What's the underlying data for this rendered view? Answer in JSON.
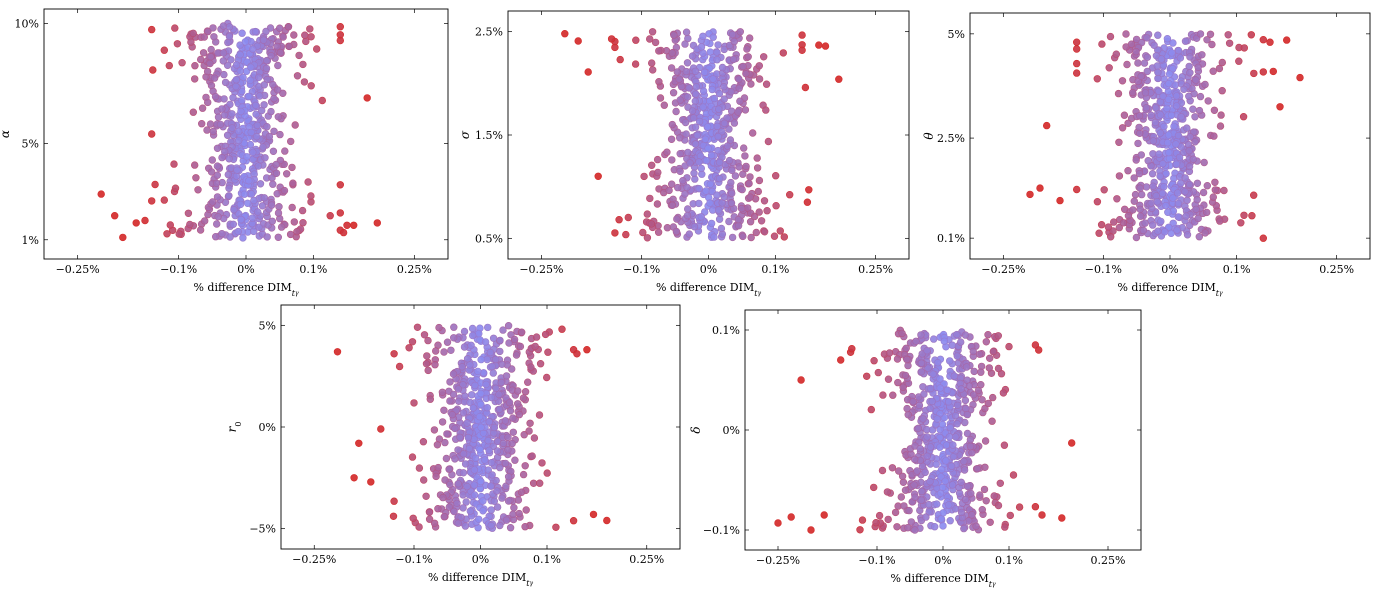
{
  "figure": {
    "xlabel": "% difference DIM",
    "xlabel_sub": "t",
    "xlabel_subsub": "γ"
  },
  "colors": {
    "center": "#8c8cf0",
    "edge": "#d42a2a"
  },
  "chart_data": [
    {
      "type": "scatter",
      "ylabel": "α",
      "ylabel_sub": "",
      "x_ticks": [
        -0.25,
        -0.1,
        0,
        0.1,
        0.25
      ],
      "x_tick_labels": [
        "−0.25%",
        "−0.1%",
        "0%",
        "0.1%",
        "0.25%"
      ],
      "xlim": [
        -0.3,
        0.3
      ],
      "y_ticks": [
        1,
        5,
        10
      ],
      "y_tick_labels": [
        "1%",
        "5%",
        "10%"
      ],
      "ylim": [
        0.2,
        10.6
      ],
      "n_points": 600,
      "core_width": 0.042,
      "outliers": [
        [
          -0.215,
          2.9
        ],
        [
          -0.195,
          2.0
        ],
        [
          -0.183,
          1.1
        ],
        [
          -0.163,
          1.7
        ],
        [
          -0.15,
          1.8
        ],
        [
          -0.14,
          5.4
        ],
        [
          -0.135,
          3.3
        ],
        [
          0.125,
          2.0
        ],
        [
          0.14,
          1.4
        ],
        [
          0.145,
          1.3
        ],
        [
          0.15,
          1.6
        ],
        [
          0.16,
          1.6
        ],
        [
          0.18,
          6.9
        ],
        [
          0.195,
          1.7
        ]
      ]
    },
    {
      "type": "scatter",
      "ylabel": "σ",
      "ylabel_sub": "",
      "x_ticks": [
        -0.25,
        -0.1,
        0,
        0.1,
        0.25
      ],
      "x_tick_labels": [
        "−0.25%",
        "−0.1%",
        "0%",
        "0.1%",
        "0.25%"
      ],
      "xlim": [
        -0.3,
        0.3
      ],
      "y_ticks": [
        0.5,
        1.5,
        2.5
      ],
      "y_tick_labels": [
        "0.5%",
        "1.5%",
        "2.5%"
      ],
      "ylim": [
        0.3,
        2.7
      ],
      "n_points": 600,
      "core_width": 0.042,
      "outliers": [
        [
          -0.215,
          2.48
        ],
        [
          -0.195,
          2.41
        ],
        [
          -0.18,
          2.11
        ],
        [
          -0.165,
          1.1
        ],
        [
          -0.145,
          2.43
        ],
        [
          0.14,
          2.32
        ],
        [
          0.145,
          1.96
        ],
        [
          0.148,
          0.85
        ],
        [
          0.15,
          0.97
        ],
        [
          0.165,
          2.37
        ],
        [
          0.175,
          2.36
        ],
        [
          0.195,
          2.04
        ]
      ]
    },
    {
      "type": "scatter",
      "ylabel": "θ",
      "ylabel_sub": "",
      "x_ticks": [
        -0.25,
        -0.1,
        0,
        0.1,
        0.25
      ],
      "x_tick_labels": [
        "−0.25%",
        "−0.1%",
        "0%",
        "0.1%",
        "0.25%"
      ],
      "xlim": [
        -0.3,
        0.3
      ],
      "y_ticks": [
        0.1,
        2.5,
        5
      ],
      "y_tick_labels": [
        "0.1%",
        "2.5%",
        "5%"
      ],
      "ylim": [
        -0.4,
        5.5
      ],
      "n_points": 600,
      "core_width": 0.042,
      "outliers": [
        [
          -0.21,
          1.15
        ],
        [
          -0.195,
          1.3
        ],
        [
          -0.185,
          2.8
        ],
        [
          -0.165,
          1.0
        ],
        [
          -0.14,
          4.8
        ],
        [
          0.14,
          0.1
        ],
        [
          0.15,
          4.8
        ],
        [
          0.155,
          4.1
        ],
        [
          0.165,
          3.25
        ],
        [
          0.175,
          4.85
        ],
        [
          0.195,
          3.95
        ]
      ]
    },
    {
      "type": "scatter",
      "ylabel": "r",
      "ylabel_sub": "0",
      "x_ticks": [
        -0.25,
        -0.1,
        0,
        0.1,
        0.25
      ],
      "x_tick_labels": [
        "−0.25%",
        "−0.1%",
        "0%",
        "0.1%",
        "0.25%"
      ],
      "xlim": [
        -0.3,
        0.3
      ],
      "y_ticks": [
        -5,
        0,
        5
      ],
      "y_tick_labels": [
        "−5%",
        "0%",
        "5%"
      ],
      "ylim": [
        -6,
        6
      ],
      "n_points": 600,
      "core_width": 0.042,
      "outliers": [
        [
          -0.215,
          3.7
        ],
        [
          -0.19,
          -2.5
        ],
        [
          -0.183,
          -0.8
        ],
        [
          -0.165,
          -2.7
        ],
        [
          -0.15,
          -0.1
        ],
        [
          -0.13,
          3.6
        ],
        [
          0.14,
          3.8
        ],
        [
          0.145,
          3.6
        ],
        [
          0.16,
          3.8
        ],
        [
          0.17,
          -4.3
        ],
        [
          0.19,
          -4.6
        ]
      ]
    },
    {
      "type": "scatter",
      "ylabel": "δ",
      "ylabel_sub": "",
      "x_ticks": [
        -0.25,
        -0.1,
        0,
        0.1,
        0.25
      ],
      "x_tick_labels": [
        "−0.25%",
        "−0.1%",
        "0%",
        "0.1%",
        "0.25%"
      ],
      "xlim": [
        -0.3,
        0.3
      ],
      "y_ticks": [
        -0.1,
        0,
        0.1
      ],
      "y_tick_labels": [
        "−0.1%",
        "0%",
        "0.1%"
      ],
      "ylim": [
        -0.12,
        0.12
      ],
      "n_points": 600,
      "core_width": 0.042,
      "outliers": [
        [
          -0.25,
          -0.093
        ],
        [
          -0.23,
          -0.087
        ],
        [
          -0.215,
          0.05
        ],
        [
          -0.2,
          -0.1
        ],
        [
          -0.18,
          -0.085
        ],
        [
          -0.155,
          0.07
        ],
        [
          0.14,
          0.085
        ],
        [
          0.145,
          0.08
        ],
        [
          0.15,
          -0.085
        ],
        [
          0.18,
          -0.088
        ],
        [
          0.195,
          -0.013
        ]
      ]
    }
  ]
}
